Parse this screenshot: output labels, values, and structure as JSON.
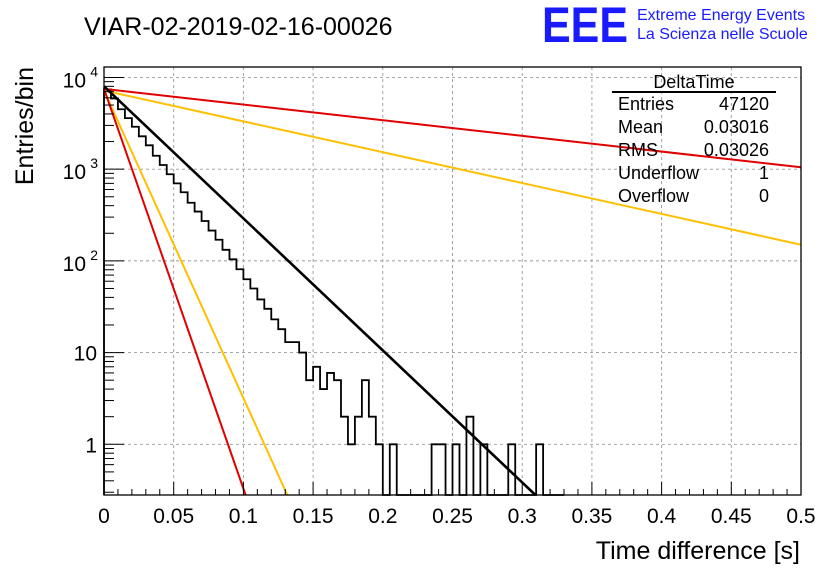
{
  "title": "VIAR-02-2019-02-16-00026",
  "logo": {
    "text": "EEE",
    "line1": "Extreme Energy Events",
    "line2": "La Scienza nelle Scuole",
    "color": "#1a1aff"
  },
  "chart_data": {
    "type": "line",
    "xlabel": "Time difference [s]",
    "ylabel": "Entries/bin",
    "xlim": [
      0,
      0.5
    ],
    "ylim": [
      0.28,
      13000
    ],
    "yscale": "log",
    "grid": true,
    "x_ticks": [
      "0",
      "0.05",
      "0.1",
      "0.15",
      "0.2",
      "0.25",
      "0.3",
      "0.35",
      "0.4",
      "0.45",
      "0.5"
    ],
    "y_ticks": [
      {
        "value": 1,
        "label": "1"
      },
      {
        "value": 10,
        "label": "10"
      },
      {
        "value": 100,
        "label": "10",
        "exp": "2"
      },
      {
        "value": 1000,
        "label": "10",
        "exp": "3"
      },
      {
        "value": 10000,
        "label": "10",
        "exp": "4"
      }
    ],
    "histogram": {
      "color": "#000000",
      "bin_width": 0.005,
      "counts": [
        7400,
        5900,
        4500,
        3600,
        2900,
        2280,
        1820,
        1400,
        1110,
        880,
        700,
        560,
        430,
        345,
        272,
        214,
        170,
        132,
        104,
        81,
        63,
        50,
        38,
        30,
        23,
        18,
        13,
        13,
        10,
        5,
        7,
        4,
        6,
        5,
        2,
        1,
        2,
        5,
        2,
        1,
        0,
        1,
        0,
        0,
        0,
        0,
        0,
        1,
        1,
        0,
        1,
        0,
        2,
        0,
        1,
        0,
        0,
        0,
        1,
        0,
        0,
        0,
        1,
        0,
        0,
        0
      ]
    },
    "fits": [
      {
        "color": "#e00000",
        "x": [
          0,
          0.5
        ],
        "y": [
          7500,
          1050
        ]
      },
      {
        "color": "#ffc000",
        "x": [
          0,
          0.5
        ],
        "y": [
          7200,
          150
        ]
      },
      {
        "color": "#000000",
        "x": [
          0,
          0.3095
        ],
        "y": [
          8000,
          0.28
        ]
      },
      {
        "color": "#ffc000",
        "x": [
          0,
          0.1315
        ],
        "y": [
          7200,
          0.28
        ]
      },
      {
        "color": "#e00000",
        "x": [
          0,
          0.1016
        ],
        "y": [
          7500,
          0.28
        ]
      }
    ]
  },
  "stats": {
    "title": "DeltaTime",
    "rows": [
      {
        "label": "Entries",
        "value": "47120"
      },
      {
        "label": "Mean",
        "value": "0.03016"
      },
      {
        "label": "RMS",
        "value": "0.03026"
      },
      {
        "label": "Underflow",
        "value": "1"
      },
      {
        "label": "Overflow",
        "value": "0"
      }
    ]
  }
}
